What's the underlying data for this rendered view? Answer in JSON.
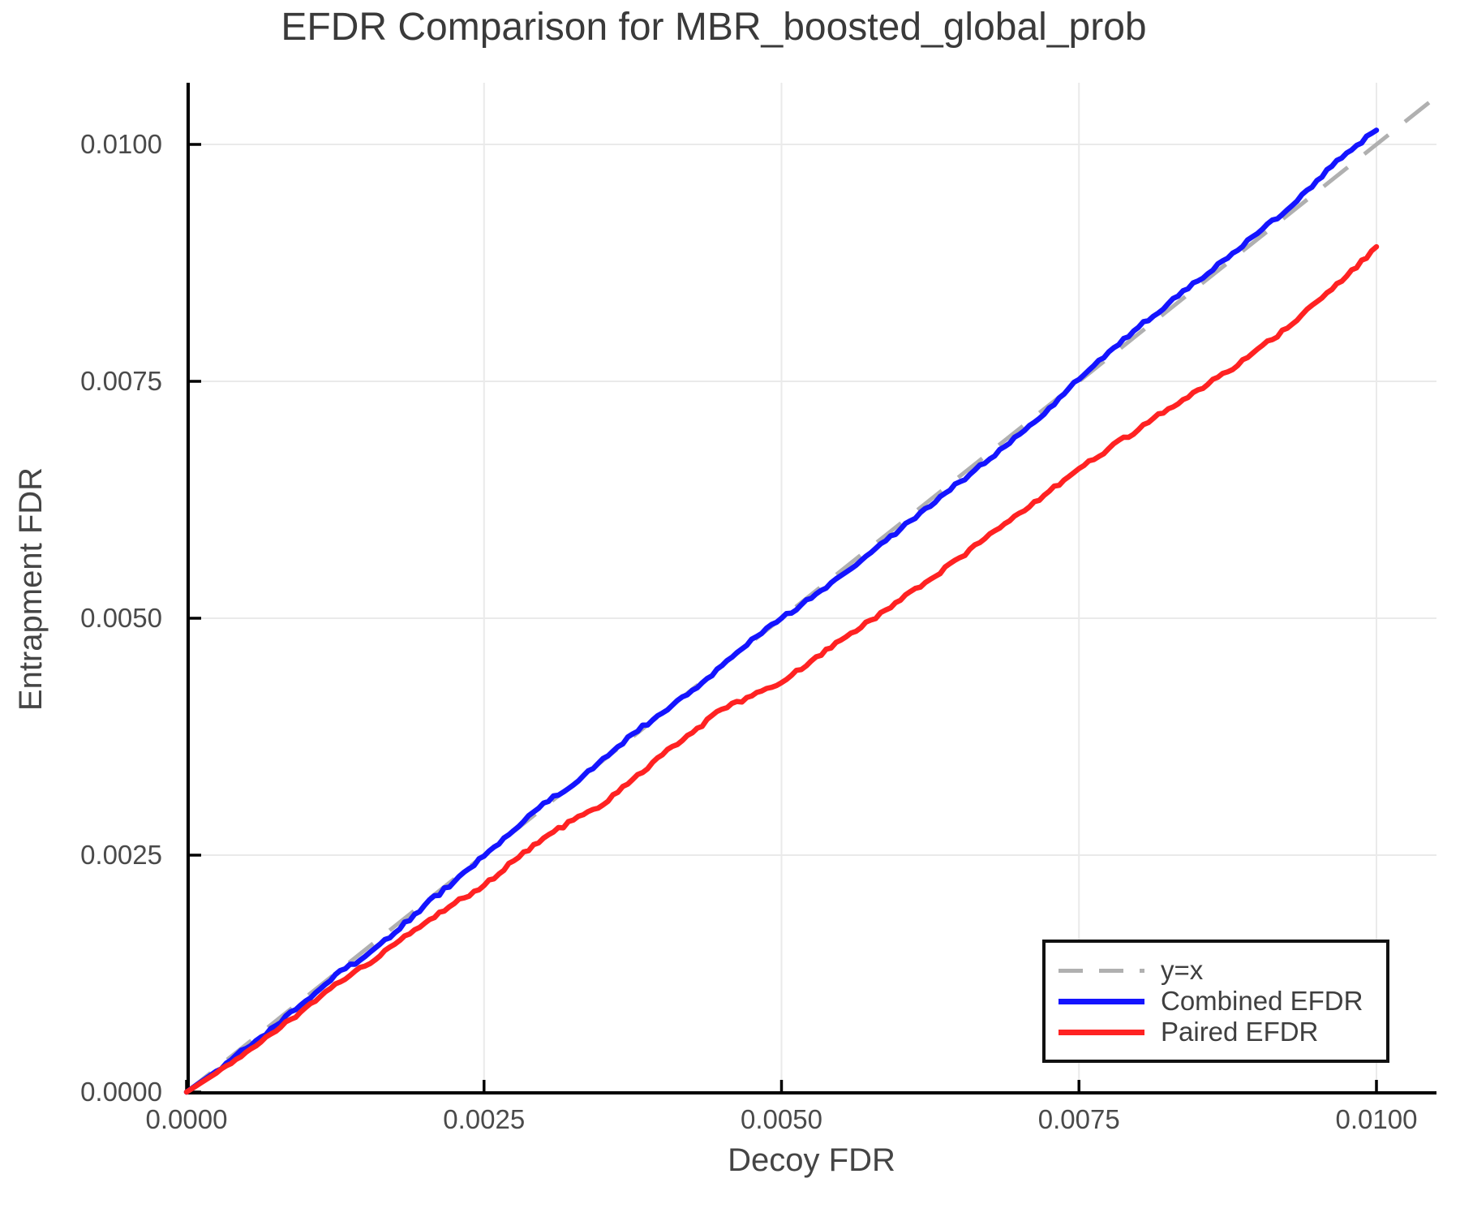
{
  "title": "EFDR Comparison for MBR_boosted_global_prob",
  "colors": {
    "identity_line": "#b0b0b0",
    "combined_line": "#1414ff",
    "paired_line": "#ff2222",
    "grid": "#eaeaea",
    "spine": "#000000",
    "text": "#454545"
  },
  "chart_data": {
    "type": "line",
    "title": "EFDR Comparison for MBR_boosted_global_prob",
    "xlabel": "Decoy FDR",
    "ylabel": "Entrapment FDR",
    "xlim": [
      0,
      0.010504
    ],
    "ylim": [
      0,
      0.01065
    ],
    "grid": "on",
    "legend_position": "lower right",
    "x_tick_values": [
      0.0,
      0.0025,
      0.005,
      0.0075,
      0.01
    ],
    "x_tick_labels": [
      "0.0000",
      "0.0025",
      "0.0050",
      "0.0075",
      "0.0100"
    ],
    "y_tick_values": [
      0.0,
      0.0025,
      0.005,
      0.0075,
      0.01
    ],
    "y_tick_labels": [
      "0.0000",
      "0.0025",
      "0.0050",
      "0.0075",
      "0.0100"
    ],
    "series": [
      {
        "name": "y=x",
        "style": "dashed",
        "color": "#b0b0b0",
        "x": [
          0,
          0.010504
        ],
        "y": [
          0,
          0.010504
        ]
      },
      {
        "name": "Combined EFDR",
        "style": "solid",
        "color": "#1414ff",
        "x": [
          0.0,
          0.00025,
          0.0005,
          0.00075,
          0.001,
          0.00125,
          0.0015,
          0.00175,
          0.002,
          0.00225,
          0.0025,
          0.00275,
          0.003,
          0.00325,
          0.0035,
          0.00375,
          0.004,
          0.00425,
          0.0045,
          0.00475,
          0.005,
          0.00525,
          0.0055,
          0.00575,
          0.006,
          0.00625,
          0.0065,
          0.00675,
          0.007,
          0.00725,
          0.0075,
          0.00775,
          0.008,
          0.00825,
          0.0085,
          0.00875,
          0.009,
          0.00925,
          0.0095,
          0.00975,
          0.01
        ],
        "y": [
          0.0,
          0.00022,
          0.00046,
          0.0007,
          0.00096,
          0.00124,
          0.00143,
          0.00168,
          0.00197,
          0.00222,
          0.00249,
          0.00276,
          0.00305,
          0.00324,
          0.00352,
          0.00378,
          0.004,
          0.00424,
          0.0045,
          0.00478,
          0.005,
          0.00521,
          0.00545,
          0.00569,
          0.00594,
          0.00618,
          0.00644,
          0.00668,
          0.00694,
          0.00722,
          0.00752,
          0.00781,
          0.00807,
          0.00832,
          0.00856,
          0.0088,
          0.00906,
          0.00931,
          0.00962,
          0.00991,
          0.01015
        ]
      },
      {
        "name": "Paired EFDR",
        "style": "solid",
        "color": "#ff2222",
        "x": [
          0.0,
          0.00025,
          0.0005,
          0.00075,
          0.001,
          0.00125,
          0.0015,
          0.00175,
          0.002,
          0.00225,
          0.0025,
          0.00275,
          0.003,
          0.00325,
          0.0035,
          0.00375,
          0.004,
          0.00425,
          0.0045,
          0.00475,
          0.005,
          0.00525,
          0.0055,
          0.00575,
          0.006,
          0.00625,
          0.0065,
          0.00675,
          0.007,
          0.00725,
          0.0075,
          0.00775,
          0.008,
          0.00825,
          0.0085,
          0.00875,
          0.009,
          0.00925,
          0.0095,
          0.00975,
          0.01
        ],
        "y": [
          0.0,
          0.0002,
          0.00042,
          0.00064,
          0.00089,
          0.00114,
          0.00133,
          0.00156,
          0.00178,
          0.00199,
          0.00218,
          0.00244,
          0.00268,
          0.00287,
          0.00303,
          0.0033,
          0.00356,
          0.00379,
          0.00404,
          0.00418,
          0.00432,
          0.00455,
          0.00477,
          0.00498,
          0.00519,
          0.00541,
          0.00564,
          0.00589,
          0.00611,
          0.00634,
          0.00658,
          0.00679,
          0.00699,
          0.00721,
          0.00741,
          0.0076,
          0.00784,
          0.00806,
          0.00834,
          0.00861,
          0.00892
        ]
      }
    ]
  },
  "legend": {
    "items": [
      {
        "label": "y=x"
      },
      {
        "label": "Combined EFDR"
      },
      {
        "label": "Paired EFDR"
      }
    ]
  }
}
